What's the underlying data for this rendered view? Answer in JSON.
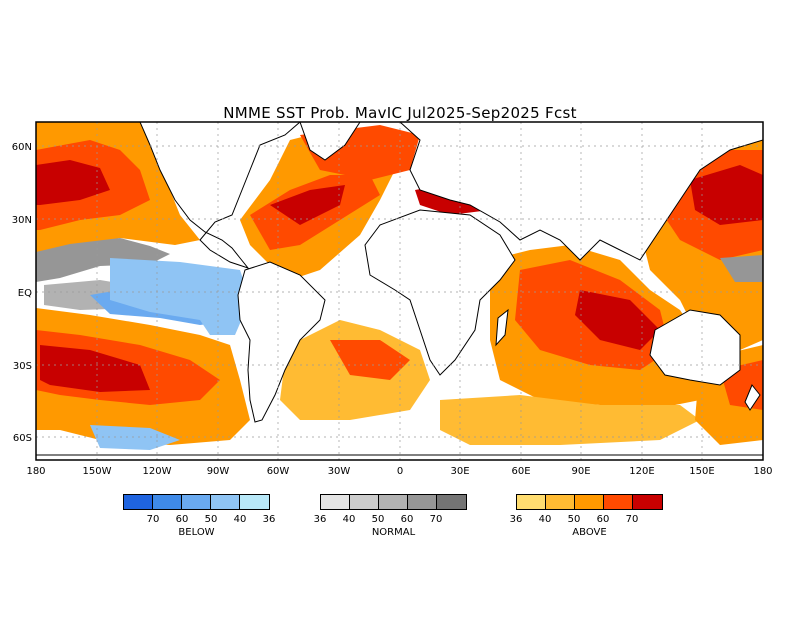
{
  "title": "NMME SST Prob. MavIC  Jul2025-Sep2025 Fcst",
  "map": {
    "lat_labels": [
      "60N",
      "30N",
      "EQ",
      "30S",
      "60S"
    ],
    "lon_labels": [
      "180",
      "150W",
      "120W",
      "90W",
      "60W",
      "30W",
      "0",
      "30E",
      "60E",
      "90E",
      "120E",
      "150E",
      "180"
    ]
  },
  "legend": {
    "below": {
      "label": "BELOW",
      "ticks": [
        "70",
        "60",
        "50",
        "40",
        "36"
      ],
      "colors": [
        "#1f64e0",
        "#3f8ae8",
        "#6aaaf0",
        "#8fc4f4",
        "#b8e8f8"
      ]
    },
    "normal": {
      "label": "NORMAL",
      "ticks": [
        "36",
        "40",
        "50",
        "60",
        "70"
      ],
      "colors": [
        "#e4e4e4",
        "#cccccc",
        "#b2b2b2",
        "#969696",
        "#747474"
      ]
    },
    "above": {
      "label": "ABOVE",
      "ticks": [
        "36",
        "40",
        "50",
        "60",
        "70"
      ],
      "colors": [
        "#ffdd70",
        "#ffbb33",
        "#ff9900",
        "#ff4a00",
        "#c80000"
      ]
    }
  },
  "colors": {
    "land": "#ffffff",
    "frame": "#000000",
    "grid": "#9a9a9a"
  }
}
